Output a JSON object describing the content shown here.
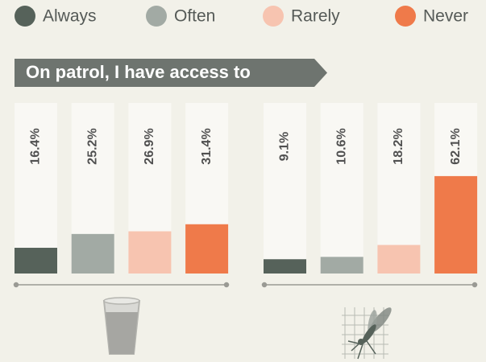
{
  "chart_data": {
    "type": "bar",
    "title": "On patrol, I have access to",
    "categories": [
      null,
      null
    ],
    "series": [
      {
        "name": "Always",
        "color": "#56625a",
        "values": [
          16.4,
          9.1
        ],
        "value_labels": [
          "16.4%",
          "9.1%"
        ]
      },
      {
        "name": "Often",
        "color": "#a2aaa4",
        "values": [
          25.2,
          10.6
        ],
        "value_labels": [
          "25.2%",
          "10.6%"
        ]
      },
      {
        "name": "Rarely",
        "color": "#f7c4b0",
        "values": [
          26.9,
          18.2
        ],
        "value_labels": [
          "26.9%",
          "18.2%"
        ]
      },
      {
        "name": "Never",
        "color": "#ef7a4a",
        "values": [
          31.4,
          62.1
        ],
        "value_labels": [
          "31.4%",
          "62.1%"
        ]
      }
    ]
  }
}
